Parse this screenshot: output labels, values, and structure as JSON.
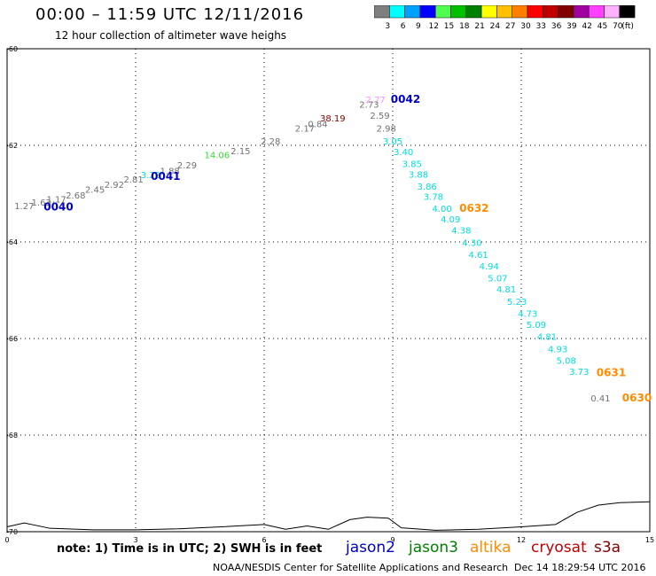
{
  "header": {
    "title": "00:00 – 11:59 UTC 12/11/2016",
    "subtitle": "12 hour collection of altimeter wave heighs"
  },
  "color_scale": {
    "unit": "(ft)",
    "bins": [
      {
        "label": "3",
        "color": "#7f7f7f"
      },
      {
        "label": "6",
        "color": "#00ffff"
      },
      {
        "label": "9",
        "color": "#00a0ff"
      },
      {
        "label": "12",
        "color": "#0000ff"
      },
      {
        "label": "15",
        "color": "#50ff50"
      },
      {
        "label": "18",
        "color": "#00c000"
      },
      {
        "label": "21",
        "color": "#008000"
      },
      {
        "label": "24",
        "color": "#ffff00"
      },
      {
        "label": "27",
        "color": "#ffc000"
      },
      {
        "label": "30",
        "color": "#ff8000"
      },
      {
        "label": "33",
        "color": "#ff0000"
      },
      {
        "label": "36",
        "color": "#c00000"
      },
      {
        "label": "39",
        "color": "#800000"
      },
      {
        "label": "42",
        "color": "#a000a0"
      },
      {
        "label": "45",
        "color": "#ff40ff"
      },
      {
        "label": "70",
        "color": "#ffb0ff"
      },
      {
        "label": "",
        "color": "#000000"
      }
    ]
  },
  "axes": {
    "x_ticks": [
      "0",
      "3",
      "6",
      "9",
      "12",
      "15"
    ],
    "y_ticks": [
      "-60",
      "-62",
      "-64",
      "-66",
      "-68",
      "-70"
    ]
  },
  "chart_data": {
    "type": "scatter",
    "xlim": [
      0,
      15
    ],
    "ylim": [
      -60,
      -70
    ],
    "grid": true,
    "points": [
      {
        "x": 0.4,
        "y": -63.32,
        "label": "1.27",
        "color": "#707070"
      },
      {
        "x": 0.8,
        "y": -63.25,
        "label": "1.63",
        "color": "#707070"
      },
      {
        "x": 1.15,
        "y": -63.18,
        "label": "1.17",
        "color": "#707070"
      },
      {
        "x": 1.6,
        "y": -63.1,
        "label": "2.68",
        "color": "#707070"
      },
      {
        "x": 2.05,
        "y": -62.98,
        "label": "2.45",
        "color": "#707070"
      },
      {
        "x": 2.5,
        "y": -62.88,
        "label": "2.92",
        "color": "#707070"
      },
      {
        "x": 2.95,
        "y": -62.77,
        "label": "2.81",
        "color": "#707070"
      },
      {
        "x": 3.35,
        "y": -62.68,
        "label": "3.22",
        "color": "#00dddd"
      },
      {
        "x": 3.8,
        "y": -62.6,
        "label": "1.88",
        "color": "#707070"
      },
      {
        "x": 4.2,
        "y": -62.48,
        "label": "2.29",
        "color": "#707070"
      },
      {
        "x": 4.9,
        "y": -62.27,
        "label": "14.06",
        "color": "#30dd30"
      },
      {
        "x": 5.45,
        "y": -62.18,
        "label": "2.15",
        "color": "#707070"
      },
      {
        "x": 6.15,
        "y": -61.98,
        "label": "2.28",
        "color": "#707070"
      },
      {
        "x": 6.95,
        "y": -61.72,
        "label": "2.17",
        "color": "#707070"
      },
      {
        "x": 7.25,
        "y": -61.62,
        "label": "0.84",
        "color": "#707070"
      },
      {
        "x": 7.6,
        "y": -61.5,
        "label": "38.19",
        "color": "#800000"
      },
      {
        "x": 8.6,
        "y": -61.12,
        "label": "2.77",
        "color": "#ff90ff"
      },
      {
        "x": 8.45,
        "y": -61.22,
        "label": "2.73",
        "color": "#707070"
      },
      {
        "x": 8.7,
        "y": -61.45,
        "label": "2.59",
        "color": "#707070"
      },
      {
        "x": 8.85,
        "y": -61.72,
        "label": "2.98",
        "color": "#707070"
      },
      {
        "x": 9.0,
        "y": -61.98,
        "label": "3.05",
        "color": "#00dddd"
      },
      {
        "x": 9.25,
        "y": -62.2,
        "label": "3.40",
        "color": "#00dddd"
      },
      {
        "x": 9.45,
        "y": -62.45,
        "label": "3.85",
        "color": "#00dddd"
      },
      {
        "x": 9.6,
        "y": -62.67,
        "label": "3.88",
        "color": "#00dddd"
      },
      {
        "x": 9.8,
        "y": -62.92,
        "label": "3.86",
        "color": "#00dddd"
      },
      {
        "x": 9.95,
        "y": -63.13,
        "label": "3.78",
        "color": "#00dddd"
      },
      {
        "x": 10.15,
        "y": -63.38,
        "label": "4.00",
        "color": "#00dddd"
      },
      {
        "x": 10.35,
        "y": -63.6,
        "label": "4.09",
        "color": "#00dddd"
      },
      {
        "x": 10.6,
        "y": -63.83,
        "label": "4.38",
        "color": "#00dddd"
      },
      {
        "x": 10.85,
        "y": -64.08,
        "label": "4.30",
        "color": "#00dddd"
      },
      {
        "x": 11.0,
        "y": -64.33,
        "label": "4.61",
        "color": "#00dddd"
      },
      {
        "x": 11.25,
        "y": -64.57,
        "label": "4.94",
        "color": "#00dddd"
      },
      {
        "x": 11.45,
        "y": -64.82,
        "label": "5.07",
        "color": "#00dddd"
      },
      {
        "x": 11.65,
        "y": -65.05,
        "label": "4.81",
        "color": "#00dddd"
      },
      {
        "x": 11.9,
        "y": -65.3,
        "label": "5.23",
        "color": "#00dddd"
      },
      {
        "x": 12.15,
        "y": -65.55,
        "label": "4.73",
        "color": "#00dddd"
      },
      {
        "x": 12.35,
        "y": -65.78,
        "label": "5.09",
        "color": "#00dddd"
      },
      {
        "x": 12.6,
        "y": -66.03,
        "label": "4.81",
        "color": "#00dddd"
      },
      {
        "x": 12.85,
        "y": -66.28,
        "label": "4.93",
        "color": "#00dddd"
      },
      {
        "x": 13.05,
        "y": -66.52,
        "label": "5.08",
        "color": "#00dddd"
      },
      {
        "x": 13.35,
        "y": -66.75,
        "label": "3.73",
        "color": "#00dddd"
      },
      {
        "x": 13.85,
        "y": -67.3,
        "label": "0.41",
        "color": "#707070"
      }
    ],
    "track_labels": [
      {
        "x": 1.2,
        "y": -63.35,
        "label": "0040",
        "color": "#0000c0"
      },
      {
        "x": 3.7,
        "y": -62.72,
        "label": "0041",
        "color": "#0000c0"
      },
      {
        "x": 9.3,
        "y": -61.12,
        "label": "0042",
        "color": "#0000c0"
      },
      {
        "x": 10.9,
        "y": -63.38,
        "label": "0632",
        "color": "#ff8c00"
      },
      {
        "x": 14.1,
        "y": -66.78,
        "label": "0631",
        "color": "#ff8c00"
      },
      {
        "x": 14.7,
        "y": -67.3,
        "label": "0630",
        "color": "#ff8c00"
      }
    ],
    "coastline": [
      [
        0,
        -69.9
      ],
      [
        0.4,
        -69.82
      ],
      [
        1.0,
        -69.93
      ],
      [
        2.0,
        -69.96
      ],
      [
        3.0,
        -69.96
      ],
      [
        4.0,
        -69.94
      ],
      [
        5.0,
        -69.9
      ],
      [
        6.0,
        -69.85
      ],
      [
        6.5,
        -69.95
      ],
      [
        7.0,
        -69.88
      ],
      [
        7.5,
        -69.95
      ],
      [
        8.0,
        -69.75
      ],
      [
        8.4,
        -69.7
      ],
      [
        8.9,
        -69.72
      ],
      [
        9.2,
        -69.92
      ],
      [
        10.0,
        -69.97
      ],
      [
        11.0,
        -69.95
      ],
      [
        12.0,
        -69.9
      ],
      [
        12.8,
        -69.85
      ],
      [
        13.3,
        -69.6
      ],
      [
        13.8,
        -69.45
      ],
      [
        14.3,
        -69.4
      ],
      [
        15.0,
        -69.38
      ]
    ]
  },
  "footer": {
    "note": "note: 1) Time is in UTC; 2) SWH is in feet",
    "satellites": [
      {
        "name": "jason2",
        "color": "#0000c0"
      },
      {
        "name": "jason3",
        "color": "#008000"
      },
      {
        "name": "altika",
        "color": "#ff8c00"
      },
      {
        "name": "cryosat",
        "color": "#c00000"
      },
      {
        "name": "s3a",
        "color": "#800000"
      }
    ],
    "credit": "NOAA/NESDIS Center for Satellite Applications and Research",
    "timestamp": "Dec 14 18:29:54 UTC 2016"
  }
}
